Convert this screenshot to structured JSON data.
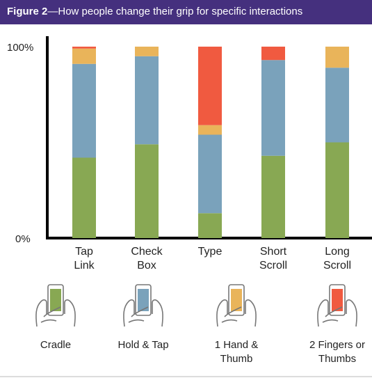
{
  "figure": {
    "label": "Figure 2",
    "title": "—How people change their grip for specific interactions"
  },
  "chart_data": {
    "type": "bar",
    "stacked": true,
    "orientation": "vertical",
    "ylim": [
      0,
      100
    ],
    "yticks": [
      "0%",
      "100%"
    ],
    "categories": [
      [
        "Tap",
        "Link"
      ],
      [
        "Check",
        "Box"
      ],
      [
        "Type",
        ""
      ],
      [
        "Short",
        "Scroll"
      ],
      [
        "Long",
        "Scroll"
      ]
    ],
    "series": [
      {
        "name": "Cradle",
        "color": "#88a853",
        "values": [
          42,
          49,
          13,
          43,
          50
        ]
      },
      {
        "name": "Hold & Tap",
        "color": "#7aa2bb",
        "values": [
          49,
          46,
          41,
          50,
          39
        ]
      },
      {
        "name": "1 Hand & Thumb",
        "color": "#e9b45a",
        "values": [
          8,
          5,
          5,
          0,
          11
        ]
      },
      {
        "name": "2 Fingers or Thumbs",
        "color": "#f05a40",
        "values": [
          1,
          0,
          41,
          7,
          0
        ]
      }
    ],
    "grid": false
  },
  "legend": [
    {
      "lines": [
        "Cradle",
        ""
      ],
      "color": "#88a853",
      "icon": "phone-cradle-icon"
    },
    {
      "lines": [
        "Hold & Tap",
        ""
      ],
      "color": "#7aa2bb",
      "icon": "phone-hold-tap-icon"
    },
    {
      "lines": [
        "1 Hand &",
        "Thumb"
      ],
      "color": "#e9b45a",
      "icon": "phone-one-hand-icon"
    },
    {
      "lines": [
        "2 Fingers or",
        "Thumbs"
      ],
      "color": "#f05a40",
      "icon": "phone-two-thumbs-icon"
    }
  ]
}
